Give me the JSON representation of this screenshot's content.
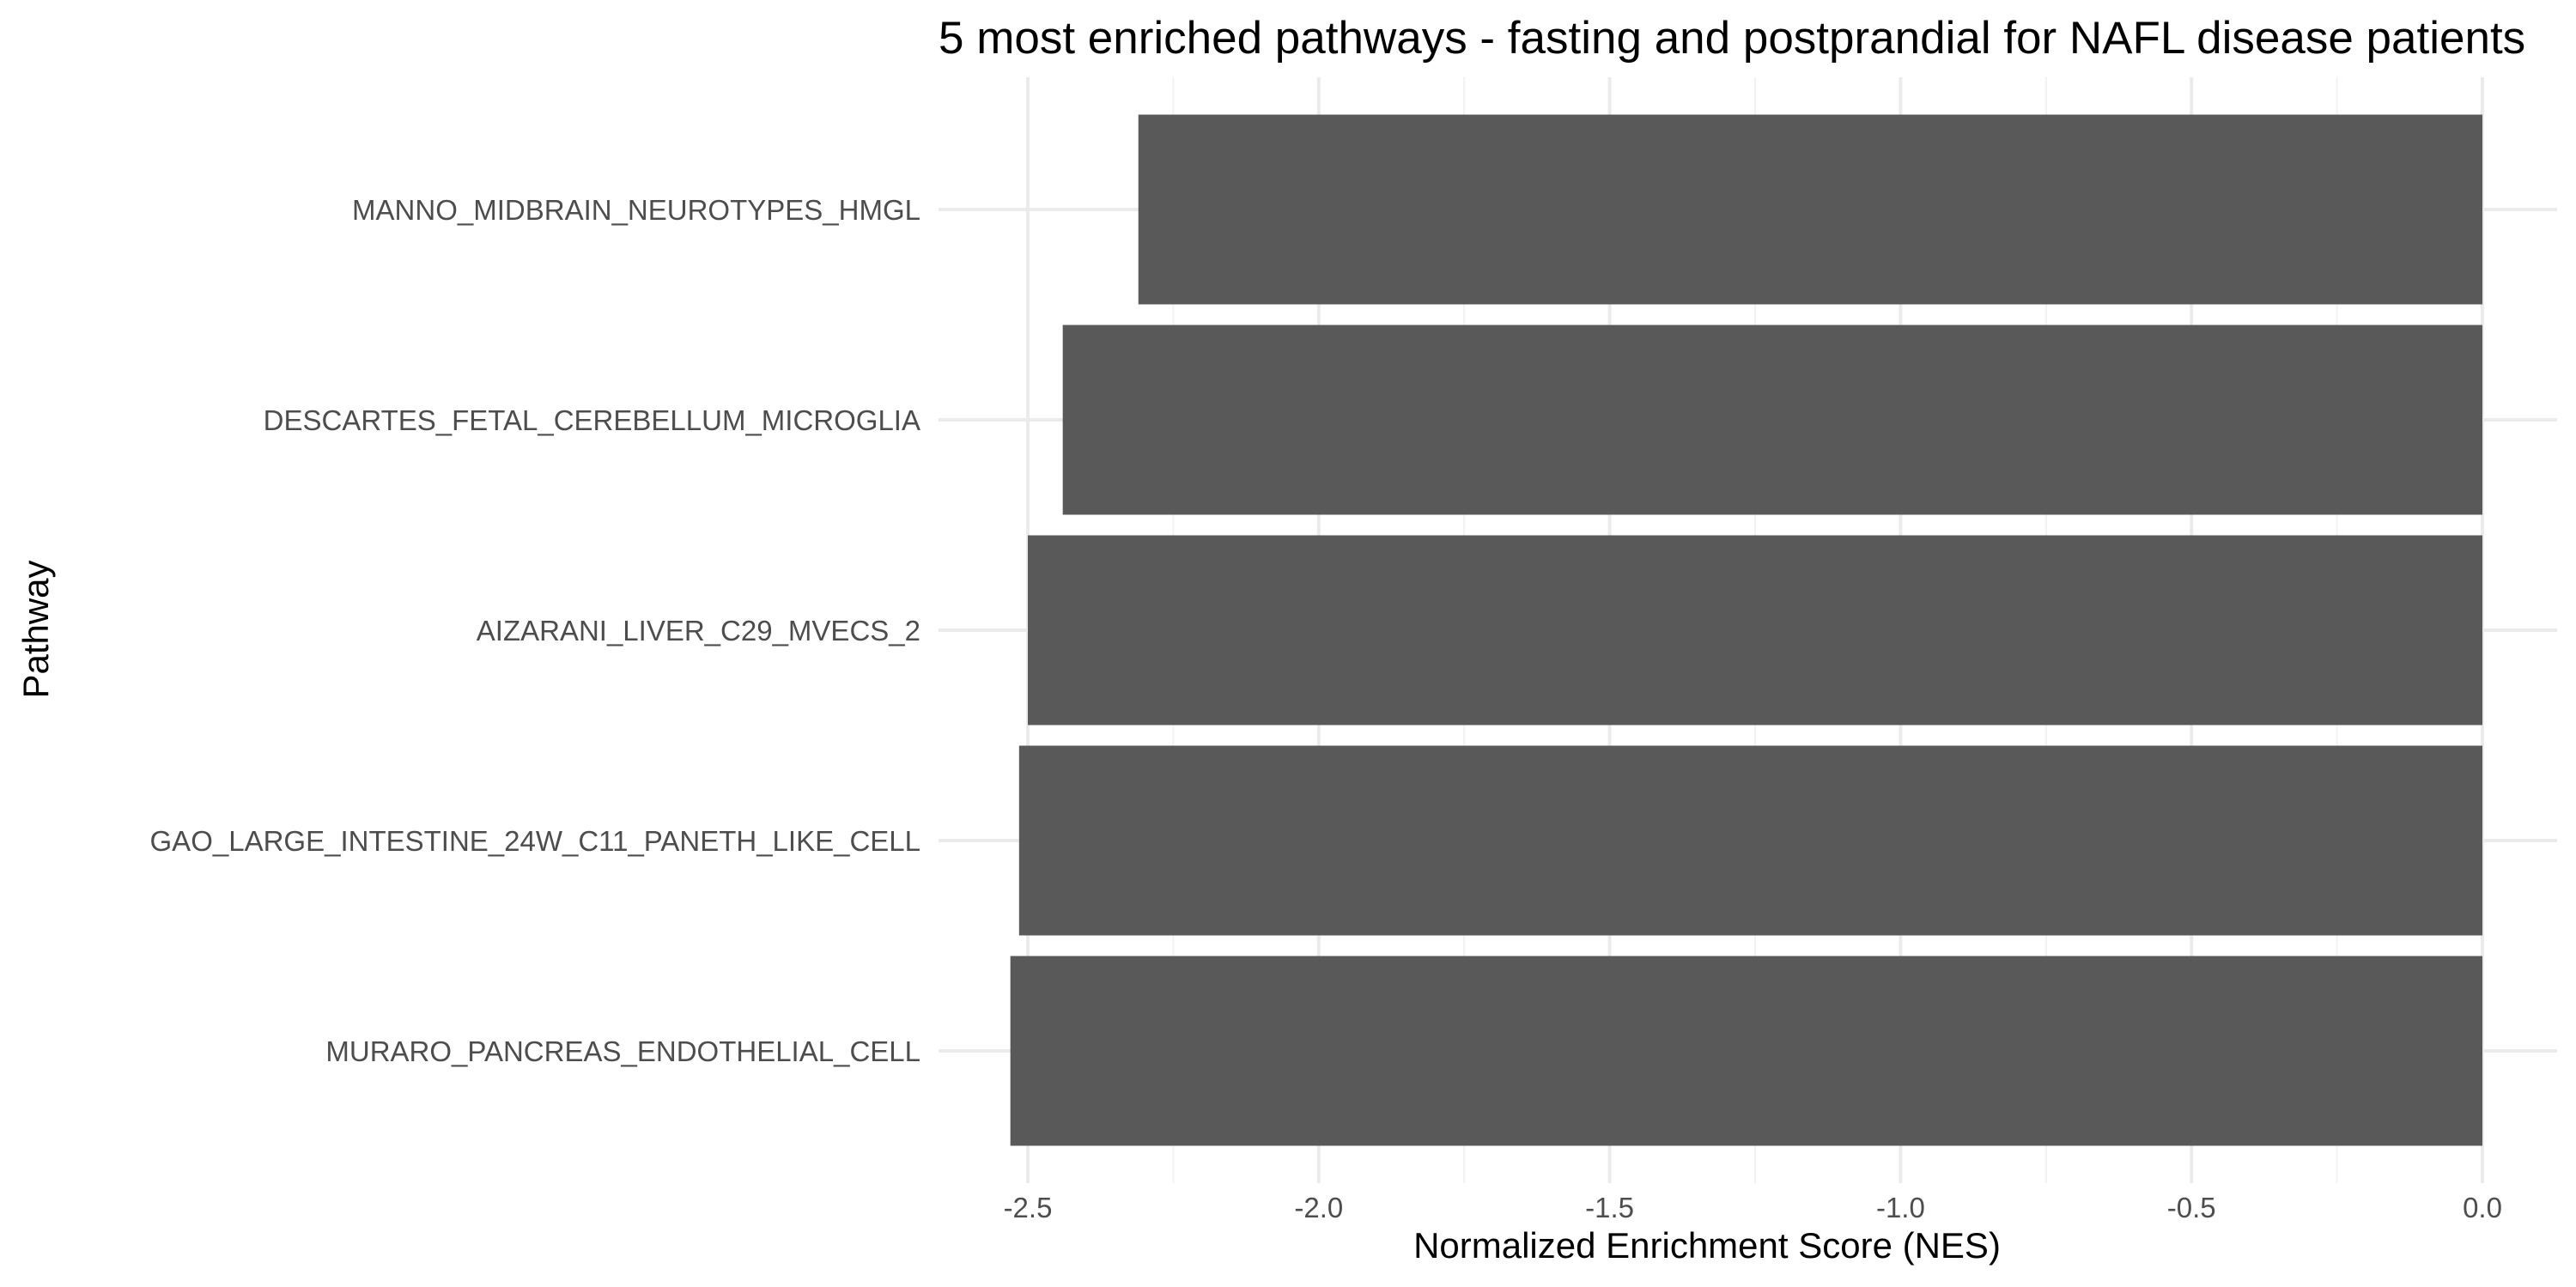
{
  "chart_data": {
    "type": "bar",
    "orientation": "horizontal",
    "title": "5 most enriched pathways - fasting and postprandial for NAFL disease patients",
    "xlabel": "Normalized Enrichment Score (NES)",
    "ylabel": "Pathway",
    "categories": [
      "MANNO_MIDBRAIN_NEUROTYPES_HMGL",
      "DESCARTES_FETAL_CEREBELLUM_MICROGLIA",
      "AIZARANI_LIVER_C29_MVECS_2",
      "GAO_LARGE_INTESTINE_24W_C11_PANETH_LIKE_CELL",
      "MURARO_PANCREAS_ENDOTHELIAL_CELL"
    ],
    "values": [
      -2.31,
      -2.44,
      -2.5,
      -2.515,
      -2.53
    ],
    "xlim": [
      -2.6,
      0.12
    ],
    "xticks": [
      -2.5,
      -2.0,
      -1.5,
      -1.0,
      -0.5,
      0.0
    ],
    "xtick_labels": [
      "-2.5",
      "-2.0",
      "-1.5",
      "-1.0",
      "-0.5",
      "0.0"
    ],
    "bar_color": "#595959",
    "grid": true,
    "legend": "none"
  }
}
